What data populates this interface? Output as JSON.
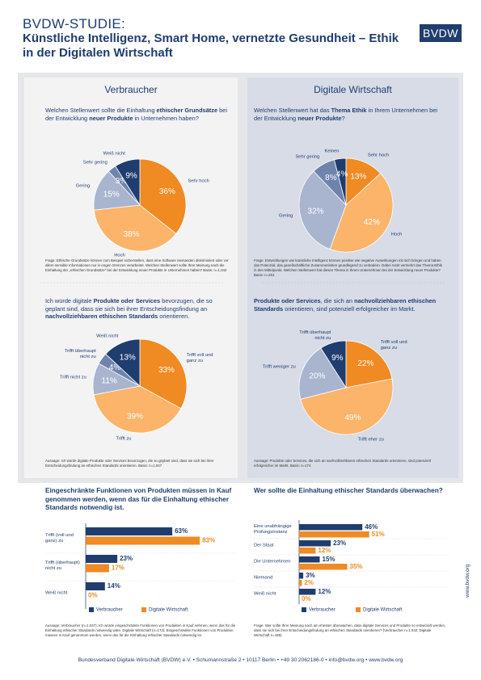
{
  "header": {
    "kicker": "BVDW-STUDIE:",
    "title": "Künstliche Intelligenz, Smart Home, vernetzte Gesundheit – Ethik in der Digitalen Wirtschaft",
    "logo": "BVDW"
  },
  "columns": [
    "Verbraucher",
    "Digitale Wirtschaft"
  ],
  "chart_data": [
    {
      "type": "pie",
      "question": [
        {
          "text": "Welchen Stellenwert sollte die Einhaltung ",
          "bold": false
        },
        {
          "text": "ethischer Grundsätze",
          "bold": true
        },
        {
          "text": " bei der Entwicklung ",
          "bold": false
        },
        {
          "text": "neuer Produkte",
          "bold": true
        },
        {
          "text": " in Unternehmen haben?",
          "bold": false
        }
      ],
      "categories": [
        "Sehr hoch",
        "Hoch",
        "Gering",
        "Sehr gering",
        "Weiß nicht"
      ],
      "values": [
        36,
        38,
        15,
        3,
        9
      ],
      "value_labels": [
        "36%",
        "38%",
        "15%",
        "3%",
        "9%"
      ],
      "colors": [
        "#f08a22",
        "#fbb46a",
        "#a9b5cf",
        "#6f84ad",
        "#1f3d6e"
      ],
      "note": "Frage: Ethische Grundsätze können zum Beispiel sicherstellen, dass eine Software niemanden diskriminiert oder vor allem sensible Informationen nur in engen Grenzen verarbeitet. Welchen Stellenwert sollte Ihrer Meinung nach die Einhaltung der „ethischen Grundsätze“ bei der Entwicklung neuer Produkte in Unternehmen haben? Basis: n=1.042"
    },
    {
      "type": "pie",
      "question": [
        {
          "text": "Welchen Stellenwert hat das ",
          "bold": false
        },
        {
          "text": "Thema Ethik",
          "bold": true
        },
        {
          "text": " in Ihrem Unternehmen bei der Entwicklung ",
          "bold": false
        },
        {
          "text": "neuer Produkte",
          "bold": true
        },
        {
          "text": "?",
          "bold": false
        }
      ],
      "categories": [
        "Sehr hoch",
        "Hoch",
        "Gering",
        "Sehr gering",
        "Keinen"
      ],
      "values": [
        13,
        42,
        32,
        8,
        4
      ],
      "value_labels": [
        "13%",
        "42%",
        "32%",
        "8%",
        "4%"
      ],
      "colors": [
        "#f08a22",
        "#fbb46a",
        "#a9b5cf",
        "#6f84ad",
        "#1f3d6e"
      ],
      "note": "Frage: Entwicklungen wie künstliche Intelligenz können positive wie negative Auswirkungen mit sich bringen und haben das Potenzial, das gesellschaftliche Zusammenleben grundlegend zu verändern. Dabei rückt vermehrt das Thema Ethik in den Mittelpunkt. Welchen Stellenwert hat dieses Thema in Ihrem Unternehmen bei der Entwicklung neuer Produkte? Basis: n=201"
    },
    {
      "type": "pie",
      "question": [
        {
          "text": "Ich würde digitale ",
          "bold": false
        },
        {
          "text": "Produkte oder Services",
          "bold": true
        },
        {
          "text": " bevorzugen, die so geplant sind, dass sie sich bei ihrer Entscheidungsfindung an ",
          "bold": false
        },
        {
          "text": "nachvollziehbaren ethischen Standards",
          "bold": true
        },
        {
          "text": " orientieren.",
          "bold": false
        }
      ],
      "categories": [
        "Trifft voll und ganz zu",
        "Trifft zu",
        "Trifft nicht zu",
        "Trifft überhaupt nicht zu",
        "Weiß nicht"
      ],
      "values": [
        33,
        39,
        11,
        4,
        13
      ],
      "value_labels": [
        "33%",
        "39%",
        "11%",
        "4%",
        "13%"
      ],
      "colors": [
        "#f08a22",
        "#fbb46a",
        "#a9b5cf",
        "#6f84ad",
        "#1f3d6e"
      ],
      "note": "Aussage: Ich würde digitale Produkte oder Services bevorzugen, die so geplant sind, dass sie sich bei ihrer Entscheidungsfindung an ethischen Standards orientieren. Basis: n=1.047"
    },
    {
      "type": "pie",
      "question": [
        {
          "text": "Produkte oder Services",
          "bold": true
        },
        {
          "text": ", die sich an ",
          "bold": false
        },
        {
          "text": "nachvollziehbaren ethischen Standards",
          "bold": true
        },
        {
          "text": " orientieren, sind potenziell erfolgreicher im Markt.",
          "bold": false
        }
      ],
      "categories": [
        "Trifft voll und ganz zu",
        "Trifft eher zu",
        "Trifft weniger zu",
        "Trifft überhaupt nicht zu"
      ],
      "values": [
        22,
        49,
        20,
        9
      ],
      "value_labels": [
        "22%",
        "49%",
        "20%",
        "9%"
      ],
      "colors": [
        "#f08a22",
        "#fbb46a",
        "#a9b5cf",
        "#1f3d6e"
      ],
      "note": "Aussage: Produkte oder Services, die sich an nachvollziehbaren ethischen Standards orientieren, sind potenziell erfolgreicher im Markt. Basis: n=174"
    },
    {
      "type": "bar",
      "title": "Eingeschränkte Funktionen von Produkten müssen in Kauf genommen werden, wenn das für die Einhaltung ethischer Standards notwendig ist.",
      "categories": [
        "Trifft (voll und ganz) zu",
        "Trifft (überhaupt) nicht zu",
        "Weiß nicht"
      ],
      "series": [
        {
          "name": "Verbraucher",
          "color": "#1f3d6e",
          "values": [
            63,
            23,
            14
          ],
          "value_labels": [
            "63%",
            "23%",
            "14%"
          ]
        },
        {
          "name": "Digitale Wirtschaft",
          "color": "#f08a22",
          "values": [
            83,
            17,
            0
          ],
          "value_labels": [
            "83%",
            "17%",
            "0%"
          ]
        }
      ],
      "xlim": [
        0,
        100
      ],
      "note": "Aussage: Verbraucher (n=1.047): Ich würde eingeschränkte Funktionen von Produkten in Kauf nehmen, wenn das für die Einhaltung ethischer Standards notwendig wäre. Digitale Wirtschaft (n=174): Eingeschränkte Funktionen von Produkten müssen in Kauf genommen werden, wenn das für die Einhaltung ethischer Standards notwendig ist."
    },
    {
      "type": "bar",
      "title": "Wer sollte die Einhaltung ethischer Standards überwachen?",
      "categories": [
        "Eine unabhängige Prüfungsinstanz",
        "Der Staat",
        "Die Unternehmen",
        "Niemand",
        "Weiß nicht"
      ],
      "series": [
        {
          "name": "Verbraucher",
          "color": "#1f3d6e",
          "values": [
            46,
            23,
            15,
            3,
            12
          ],
          "value_labels": [
            "46%",
            "23%",
            "15%",
            "3%",
            "12%"
          ]
        },
        {
          "name": "Digitale Wirtschaft",
          "color": "#f08a22",
          "values": [
            51,
            12,
            35,
            2,
            0
          ],
          "value_labels": [
            "51%",
            "12%",
            "35%",
            "2%",
            "0%"
          ]
        }
      ],
      "xlim": [
        0,
        100
      ],
      "note": "Frage: Wer sollte Ihrer Meinung nach am ehesten überwachen, dass digitale Services und Produkte so entwickelt werden, dass sie sich bei ihrer Entscheidungsfindung an ethischen Standards orientieren? (Verbraucher n=1.042; Digitale Wirtschaft n=188)"
    }
  ],
  "side_text": "www.bvdw.org",
  "footer": "Bundesverband Digitale Wirtschaft (BVDW) e.V. • Schumannstraße 2 • 10117 Berlin • +49 30 2062186-0 • info@bvdw.org • www.bvdw.org"
}
